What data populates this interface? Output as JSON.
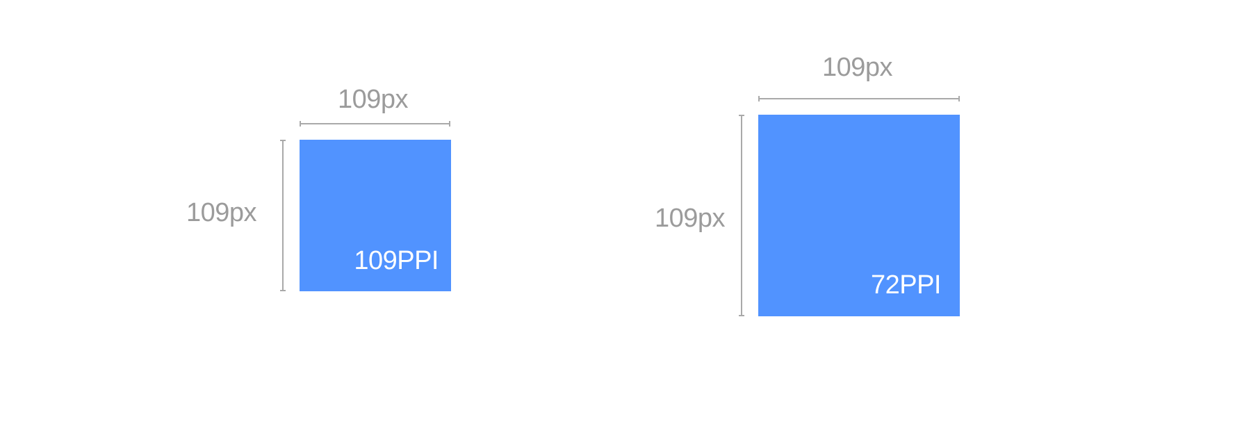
{
  "figures": [
    {
      "ppi_label": "109PPI",
      "width_label": "109px",
      "height_label": "109px",
      "color": "#5193ff"
    },
    {
      "ppi_label": "72PPI",
      "width_label": "109px",
      "height_label": "109px",
      "color": "#5193ff"
    }
  ],
  "colors": {
    "dimension_line": "#a9a9a9",
    "dimension_text": "#9b9b9b",
    "background": "#ffffff"
  }
}
